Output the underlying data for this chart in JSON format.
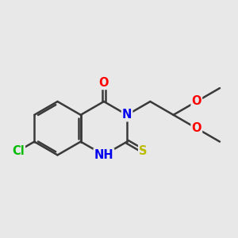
{
  "background_color": "#e8e8e8",
  "bond_color": "#3a3a3a",
  "bond_width": 1.8,
  "atom_colors": {
    "O": "#ff0000",
    "N": "#0000ee",
    "S": "#bbbb00",
    "Cl": "#00bb00",
    "C": "#3a3a3a"
  },
  "font_size": 10.5,
  "figsize": [
    3.0,
    3.0
  ],
  "dpi": 100
}
